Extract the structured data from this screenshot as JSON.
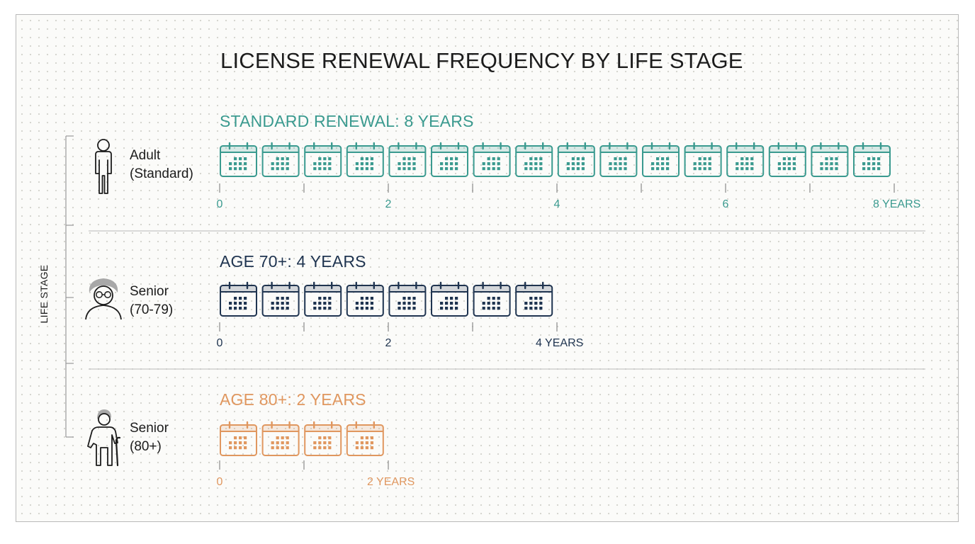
{
  "title": "LICENSE RENEWAL FREQUENCY BY LIFE STAGE",
  "axis_title": "LIFE STAGE",
  "colors": {
    "adult": "#3a9a8f",
    "senior_70": "#1f3450",
    "senior_80": "#e0975f",
    "text": "#1c1c1c",
    "divider": "#c6c6c6",
    "bracket": "#9a9a9a"
  },
  "rows": [
    {
      "key": "adult",
      "stage_line1": "Adult",
      "stage_line2": "(Standard)",
      "icon": "adult-person-icon",
      "heading": "STANDARD RENEWAL: 8 YEARS",
      "years": 8,
      "calendar_icons": 16,
      "tick_labels": [
        "0",
        "2",
        "4",
        "6",
        "8 YEARS"
      ]
    },
    {
      "key": "senior_70",
      "stage_line1": "Senior",
      "stage_line2": "(70-79)",
      "icon": "senior-glasses-person-icon",
      "heading": "AGE 70+: 4 YEARS",
      "years": 4,
      "calendar_icons": 8,
      "tick_labels": [
        "0",
        "2",
        "4 YEARS"
      ]
    },
    {
      "key": "senior_80",
      "stage_line1": "Senior",
      "stage_line2": "(80+)",
      "icon": "senior-with-cane-icon",
      "heading": "AGE 80+: 2 YEARS",
      "years": 2,
      "calendar_icons": 4,
      "tick_labels": [
        "0",
        "2 YEARS"
      ]
    }
  ]
}
